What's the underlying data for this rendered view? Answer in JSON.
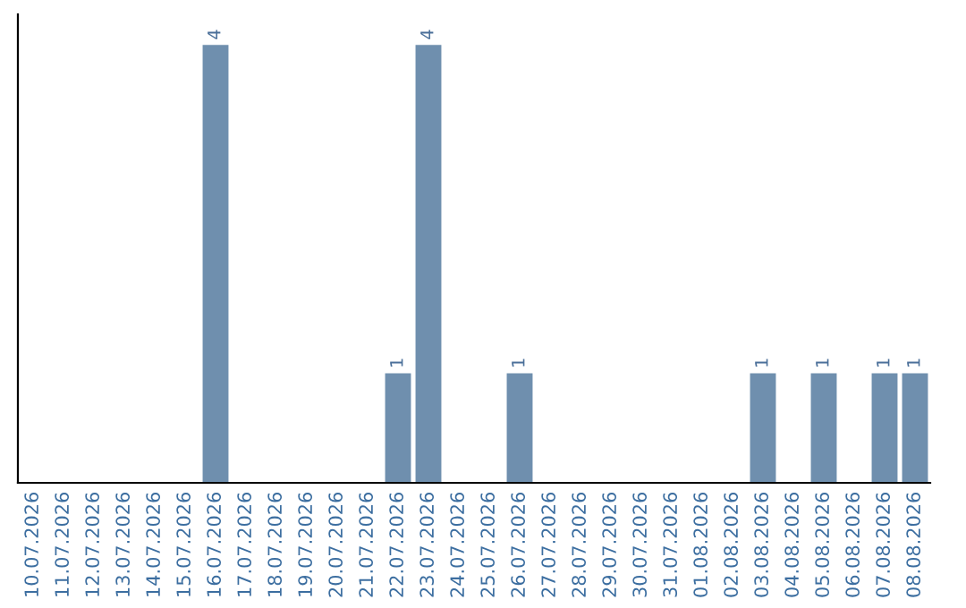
{
  "chart_data": {
    "type": "bar",
    "categories": [
      "10.07.2026",
      "11.07.2026",
      "12.07.2026",
      "13.07.2026",
      "14.07.2026",
      "15.07.2026",
      "16.07.2026",
      "17.07.2026",
      "18.07.2026",
      "19.07.2026",
      "20.07.2026",
      "21.07.2026",
      "22.07.2026",
      "23.07.2026",
      "24.07.2026",
      "25.07.2026",
      "26.07.2026",
      "27.07.2026",
      "28.07.2026",
      "29.07.2026",
      "30.07.2026",
      "31.07.2026",
      "01.08.2026",
      "02.08.2026",
      "03.08.2026",
      "04.08.2026",
      "05.08.2026",
      "06.08.2026",
      "07.08.2026",
      "08.08.2026"
    ],
    "values": [
      0,
      0,
      0,
      0,
      0,
      0,
      4,
      0,
      0,
      0,
      0,
      0,
      1,
      4,
      0,
      0,
      1,
      0,
      0,
      0,
      0,
      0,
      0,
      0,
      1,
      0,
      1,
      0,
      1,
      1
    ],
    "value_labels": [
      null,
      null,
      null,
      null,
      null,
      null,
      "4",
      null,
      null,
      null,
      null,
      null,
      "1",
      "4",
      null,
      null,
      "1",
      null,
      null,
      null,
      null,
      null,
      null,
      null,
      "1",
      null,
      "1",
      null,
      "1",
      "1"
    ],
    "color": "#6f8fae",
    "tick_labels": "x",
    "grid": false,
    "legend": false
  }
}
